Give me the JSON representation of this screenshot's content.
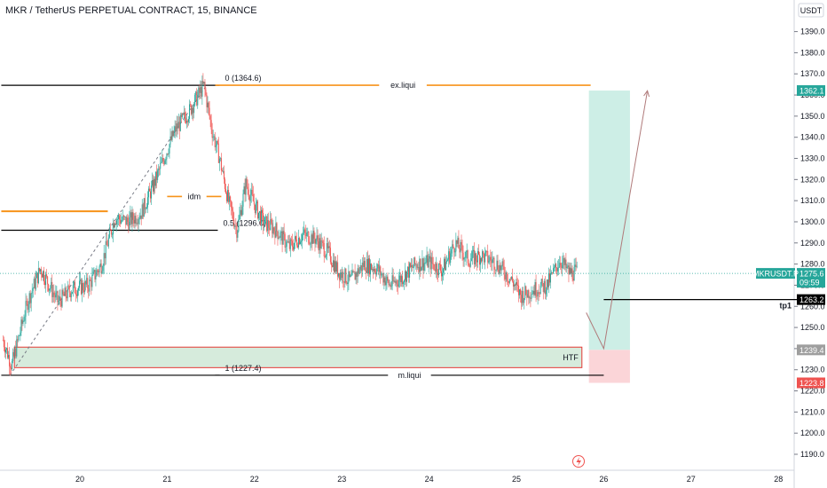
{
  "header": {
    "title": "MKR / TetherUS PERPETUAL CONTRACT, 15, BINANCE",
    "currency": "USDT"
  },
  "colors": {
    "up": "#26a69a",
    "down": "#ef5350",
    "orange": "#f7931a",
    "black": "#000000",
    "target_zone": "#cdeee6",
    "stop_zone": "#fbd5d8",
    "htf_fill": "#d6ebdc",
    "htf_border": "#e53935",
    "price_line": "#26a69a",
    "ext_line": "#a0a0a0"
  },
  "chart_data": {
    "type": "candlestick",
    "symbol": "MKRUSDT.P",
    "x_axis": {
      "ticks": [
        "20",
        "21",
        "22",
        "23",
        "24",
        "25",
        "26",
        "27",
        "28"
      ],
      "range_days": [
        19.1,
        28.3
      ]
    },
    "y_axis": {
      "ticks": [
        "1190.0",
        "1200.0",
        "1210.0",
        "1220.0",
        "1230.0",
        "1240.0",
        "1250.0",
        "1260.0",
        "1270.0",
        "1280.0",
        "1290.0",
        "1300.0",
        "1310.0",
        "1320.0",
        "1330.0",
        "1340.0",
        "1350.0",
        "1360.0",
        "1370.0",
        "1380.0",
        "1390.0"
      ],
      "ylim": [
        1186,
        1397
      ]
    },
    "price_path": [
      [
        19.12,
        1244
      ],
      [
        19.22,
        1232
      ],
      [
        19.4,
        1262
      ],
      [
        19.55,
        1278
      ],
      [
        19.75,
        1262
      ],
      [
        19.9,
        1268
      ],
      [
        20.1,
        1270
      ],
      [
        20.25,
        1280
      ],
      [
        20.4,
        1302
      ],
      [
        20.55,
        1300
      ],
      [
        20.7,
        1304
      ],
      [
        20.85,
        1318
      ],
      [
        21.0,
        1334
      ],
      [
        21.1,
        1344
      ],
      [
        21.25,
        1352
      ],
      [
        21.42,
        1364.6
      ],
      [
        21.52,
        1342
      ],
      [
        21.6,
        1330
      ],
      [
        21.7,
        1310
      ],
      [
        21.8,
        1296
      ],
      [
        21.9,
        1318
      ],
      [
        22.0,
        1308
      ],
      [
        22.1,
        1300
      ],
      [
        22.25,
        1296
      ],
      [
        22.4,
        1288
      ],
      [
        22.55,
        1294
      ],
      [
        22.7,
        1292
      ],
      [
        22.85,
        1285
      ],
      [
        22.95,
        1277
      ],
      [
        23.1,
        1272
      ],
      [
        23.25,
        1280
      ],
      [
        23.4,
        1278
      ],
      [
        23.55,
        1270
      ],
      [
        23.7,
        1274
      ],
      [
        23.85,
        1280
      ],
      [
        24.0,
        1281
      ],
      [
        24.15,
        1277
      ],
      [
        24.3,
        1290
      ],
      [
        24.45,
        1282
      ],
      [
        24.6,
        1284
      ],
      [
        24.75,
        1281
      ],
      [
        24.85,
        1277
      ],
      [
        24.95,
        1272
      ],
      [
        25.05,
        1265
      ],
      [
        25.2,
        1268
      ],
      [
        25.35,
        1270
      ],
      [
        25.5,
        1282
      ],
      [
        25.6,
        1276
      ],
      [
        25.7,
        1276
      ]
    ],
    "last_price": "1275.6",
    "countdown": "09:59",
    "price_tags": [
      {
        "value": 1362.1,
        "label": "1362.1",
        "style": "up"
      },
      {
        "value": 1275.6,
        "label": "1275.6",
        "sub": "09:59",
        "style": "up",
        "name": "MKRUSDT.P"
      },
      {
        "value": 1263.2,
        "label": "1263.2",
        "style": "dark",
        "name": "tp1"
      },
      {
        "value": 1239.4,
        "label": "1239.4",
        "style": "gray"
      },
      {
        "value": 1223.8,
        "label": "1223.8",
        "style": "down"
      }
    ],
    "levels": [
      {
        "label": "0 (1364.6)",
        "value": 1364.6,
        "x0": 19.1,
        "x1": 21.6,
        "color": "black"
      },
      {
        "label": "ex.liqui",
        "value": 1364.6,
        "x0": 21.55,
        "x1": 25.85,
        "color": "orange"
      },
      {
        "label": "idm",
        "value": 1312.0,
        "x0": 21.0,
        "x1": 21.62,
        "color": "orange"
      },
      {
        "label": "",
        "value": 1305.0,
        "x0": 19.1,
        "x1": 20.32,
        "color": "orange"
      },
      {
        "label": "0.5 (1296.0)",
        "value": 1296.0,
        "x0": 19.1,
        "x1": 21.58,
        "color": "black"
      },
      {
        "label": "1 (1227.4)",
        "value": 1227.4,
        "x0": 19.1,
        "x1": 21.6,
        "color": "black"
      },
      {
        "label": "m.liqui",
        "value": 1227.4,
        "x0": 21.55,
        "x1": 26.0,
        "color": "black"
      },
      {
        "label": "",
        "value": 1263.2,
        "x0": 26.0,
        "x1": 28.45,
        "color": "black"
      }
    ],
    "zones": [
      {
        "label": "HTF",
        "top": 1240.7,
        "bottom": 1231.0,
        "x0": 19.25,
        "x1": 25.75
      }
    ],
    "position": {
      "entry": 1239.4,
      "target": 1362.1,
      "stop": 1223.8,
      "x0": 25.83,
      "x1": 26.3
    },
    "projection": [
      [
        25.8,
        1257
      ],
      [
        26.0,
        1240
      ],
      [
        26.5,
        1362
      ]
    ]
  }
}
